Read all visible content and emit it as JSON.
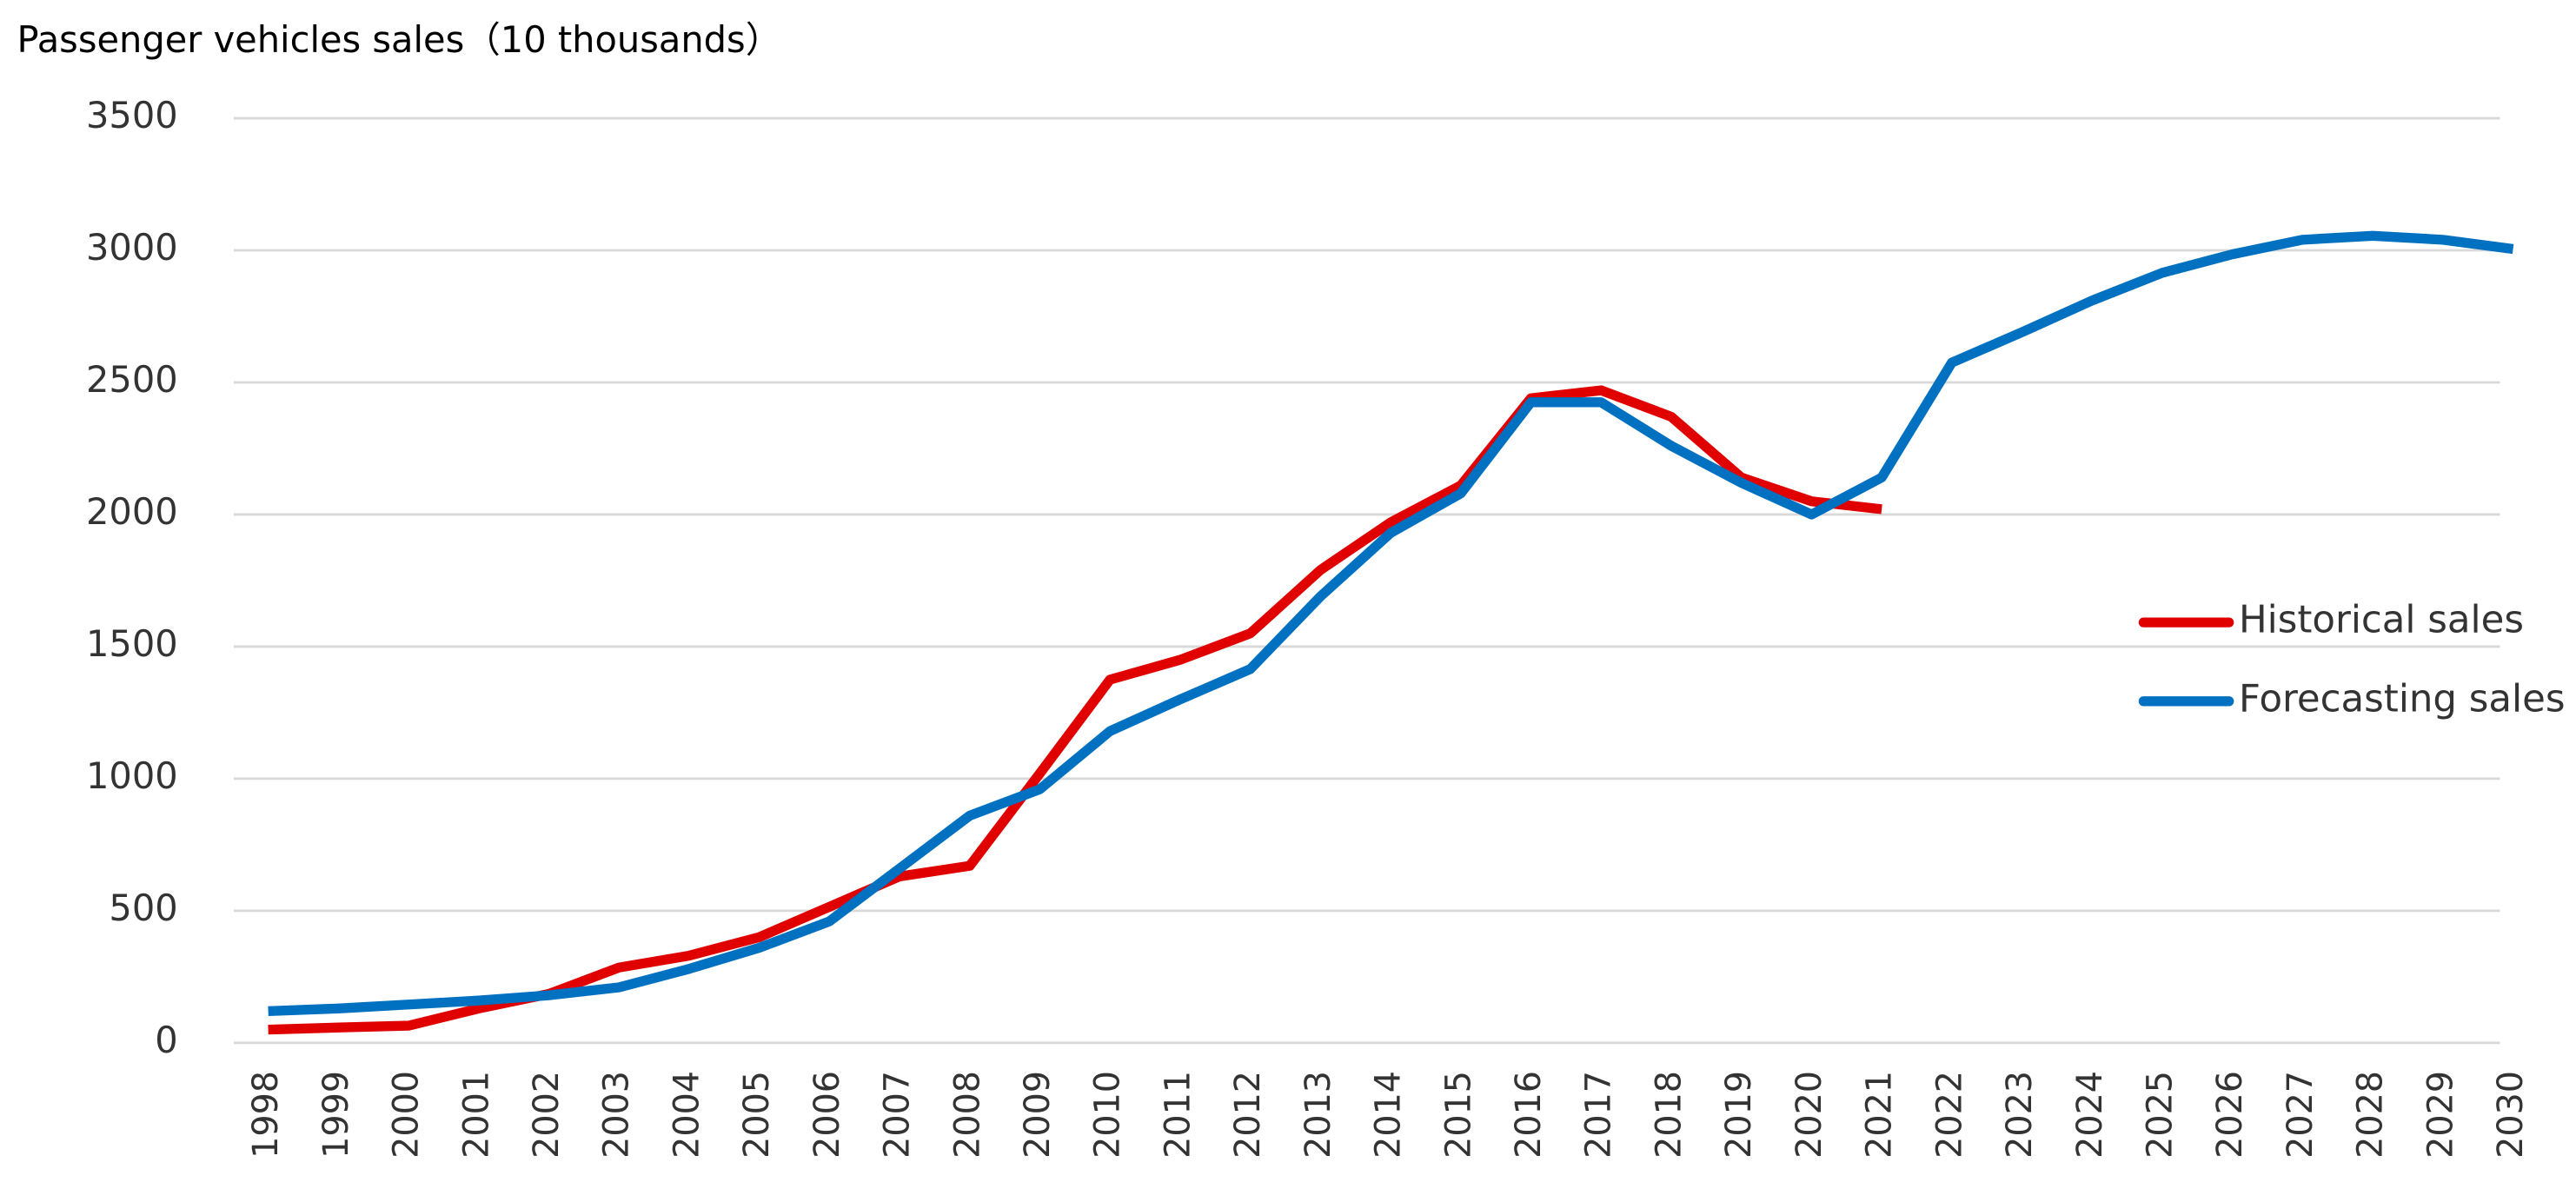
{
  "chart_data": {
    "type": "line",
    "title": "Passenger vehicles sales（10 thousands）",
    "categories": [
      "1998",
      "1999",
      "2000",
      "2001",
      "2002",
      "2003",
      "2004",
      "2005",
      "2006",
      "2007",
      "2008",
      "2009",
      "2010",
      "2011",
      "2012",
      "2013",
      "2014",
      "2015",
      "2016",
      "2017",
      "2018",
      "2019",
      "2020",
      "2021",
      "2022",
      "2023",
      "2024",
      "2025",
      "2026",
      "2027",
      "2028",
      "2029",
      "2030"
    ],
    "series": [
      {
        "name": "Historical sales",
        "color": "#e00000",
        "values": [
          50,
          58,
          65,
          130,
          185,
          285,
          330,
          400,
          515,
          630,
          670,
          1020,
          1375,
          1450,
          1550,
          1790,
          1970,
          2110,
          2440,
          2470,
          2370,
          2140,
          2050,
          2020,
          null,
          null,
          null,
          null,
          null,
          null,
          null,
          null,
          null
        ]
      },
      {
        "name": "Forecasting sales",
        "color": "#0070c0",
        "values": [
          120,
          130,
          145,
          160,
          180,
          210,
          280,
          360,
          460,
          660,
          860,
          960,
          1180,
          1300,
          1415,
          1690,
          1930,
          2080,
          2425,
          2425,
          2260,
          2120,
          2000,
          2140,
          2575,
          2690,
          2810,
          2915,
          2985,
          3040,
          3055,
          3040,
          3005
        ]
      }
    ],
    "ylim": [
      0,
      3500
    ],
    "yticks": [
      0,
      500,
      1000,
      1500,
      2000,
      2500,
      3000,
      3500
    ],
    "grid": true,
    "legend": "right"
  }
}
